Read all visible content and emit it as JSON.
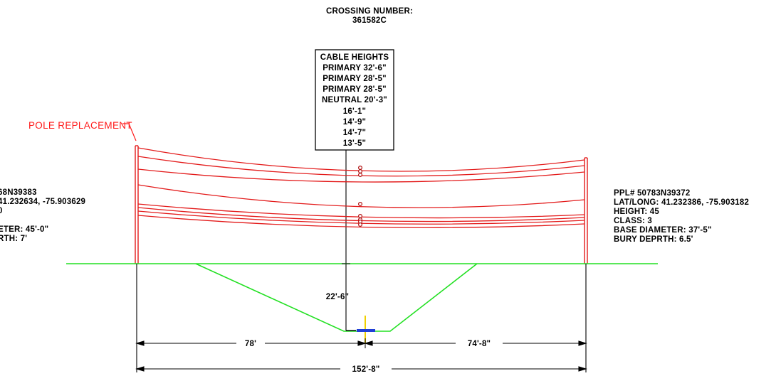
{
  "header": {
    "crossing_label": "CROSSING NUMBER:",
    "crossing_number": "361582C"
  },
  "cable_box": {
    "title": "CABLE HEIGHTS",
    "lines": [
      "PRIMARY 32'-6\"",
      "PRIMARY 28'-5\"",
      "PRIMARY 28'-5\"",
      "NEUTRAL 20'-3\"",
      "16'-1\"",
      "14'-9\"",
      "14'-7\"",
      "13'-5\""
    ]
  },
  "pole_replacement_label": "POLE REPLACEMENT",
  "left_pole": {
    "lines": [
      "68N39383",
      " 41.232634, -75.903629",
      "0",
      "",
      "ETER: 45'-0\"",
      "RTH: 7'"
    ]
  },
  "right_pole": {
    "lines": [
      "PPL# 50783N39372",
      "LAT/LONG: 41.232386, -75.903182",
      "HEIGHT: 45",
      "CLASS: 3",
      "BASE DIAMETER: 37'-5\"",
      "BURY DEPRTH: 6.5'"
    ]
  },
  "dimensions": {
    "depth": "22'-6\"",
    "left_span": "78'",
    "right_span": "74'-8\"",
    "total_span": "152'-8\""
  },
  "colors": {
    "wire": "#e31b1b",
    "ground": "#22e022",
    "dimension": "#000000",
    "track": "#1f3fd6",
    "centerline": "#f0d000"
  }
}
